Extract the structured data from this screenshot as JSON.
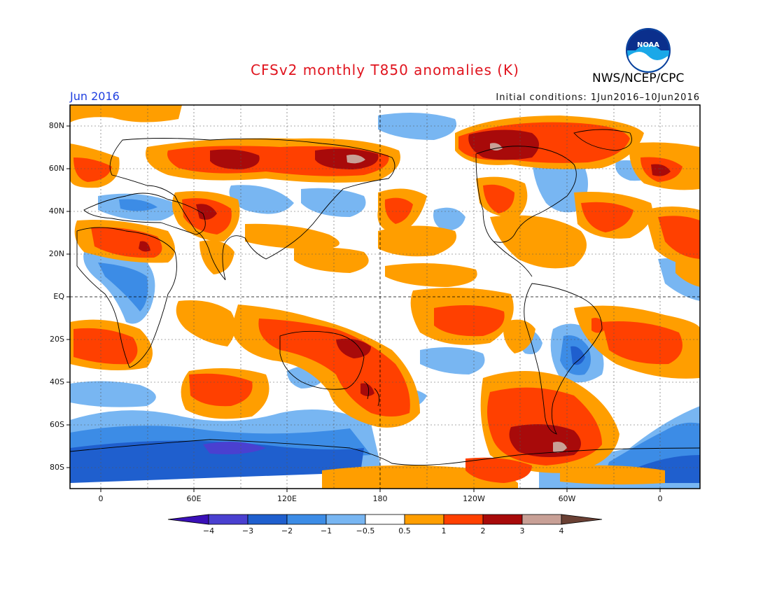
{
  "header": {
    "title": "CFSv2 monthly T850 anomalies (K)",
    "month": "Jun 2016",
    "initial_conditions": "Initial conditions: 1Jun2016–10Jun2016",
    "agency": "NWS/NCEP/CPC",
    "logo_icon": "noaa-logo-icon",
    "logo_text": "NOAA"
  },
  "map": {
    "latitude_labels": [
      "80N",
      "60N",
      "40N",
      "20N",
      "EQ",
      "20S",
      "40S",
      "60S",
      "80S"
    ],
    "longitude_labels": [
      "0",
      "60E",
      "120E",
      "180",
      "120W",
      "60W",
      "0"
    ]
  },
  "colorbar": {
    "labels": [
      "−4",
      "−3",
      "−2",
      "−1",
      "−0.5",
      "0.5",
      "1",
      "2",
      "3",
      "4"
    ],
    "colors": [
      "#3a10b8",
      "#4a40d0",
      "#1f5fce",
      "#3c8ce6",
      "#78b6f2",
      "#ffffff",
      "#ff9e00",
      "#ff4000",
      "#a80a0a",
      "#c8a096",
      "#6a4034"
    ]
  }
}
